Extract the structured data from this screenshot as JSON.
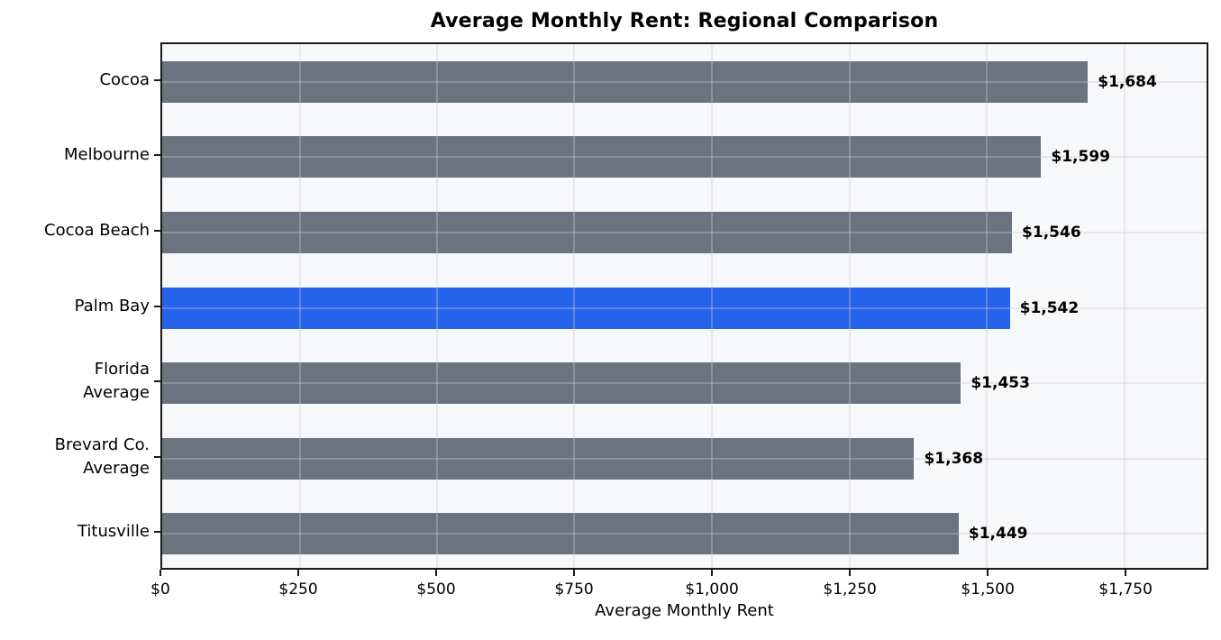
{
  "chart_data": {
    "type": "bar",
    "orientation": "horizontal",
    "title": "Average Monthly Rent: Regional Comparison",
    "xlabel": "Average Monthly Rent",
    "ylabel": "",
    "xlim": [
      0,
      1900
    ],
    "x_ticks": [
      0,
      250,
      500,
      750,
      1000,
      1250,
      1500,
      1750
    ],
    "x_tick_labels": [
      "$0",
      "$250",
      "$500",
      "$750",
      "$1,000",
      "$1,250",
      "$1,500",
      "$1,750"
    ],
    "grid": true,
    "legend": false,
    "highlighted_category": "Palm Bay",
    "bars": [
      {
        "category": "Cocoa",
        "label_lines": [
          "Cocoa"
        ],
        "value": 1684,
        "value_label": "$1,684",
        "highlight": false
      },
      {
        "category": "Melbourne",
        "label_lines": [
          "Melbourne"
        ],
        "value": 1599,
        "value_label": "$1,599",
        "highlight": false
      },
      {
        "category": "Cocoa Beach",
        "label_lines": [
          "Cocoa Beach"
        ],
        "value": 1546,
        "value_label": "$1,546",
        "highlight": false
      },
      {
        "category": "Palm Bay",
        "label_lines": [
          "Palm Bay"
        ],
        "value": 1542,
        "value_label": "$1,542",
        "highlight": true
      },
      {
        "category": "Florida Average",
        "label_lines": [
          "Florida",
          "Average"
        ],
        "value": 1453,
        "value_label": "$1,453",
        "highlight": false
      },
      {
        "category": "Brevard Co. Average",
        "label_lines": [
          "Brevard Co.",
          "Average"
        ],
        "value": 1368,
        "value_label": "$1,368",
        "highlight": false
      },
      {
        "category": "Titusville",
        "label_lines": [
          "Titusville"
        ],
        "value": 1449,
        "value_label": "$1,449",
        "highlight": false
      }
    ],
    "colors": {
      "bar_default": "#6b7280",
      "bar_highlight": "#2563eb",
      "plot_background": "#f7f8fa",
      "grid_line": "#caccd2",
      "spine": "#1a1a1a",
      "text": "#000000"
    }
  }
}
